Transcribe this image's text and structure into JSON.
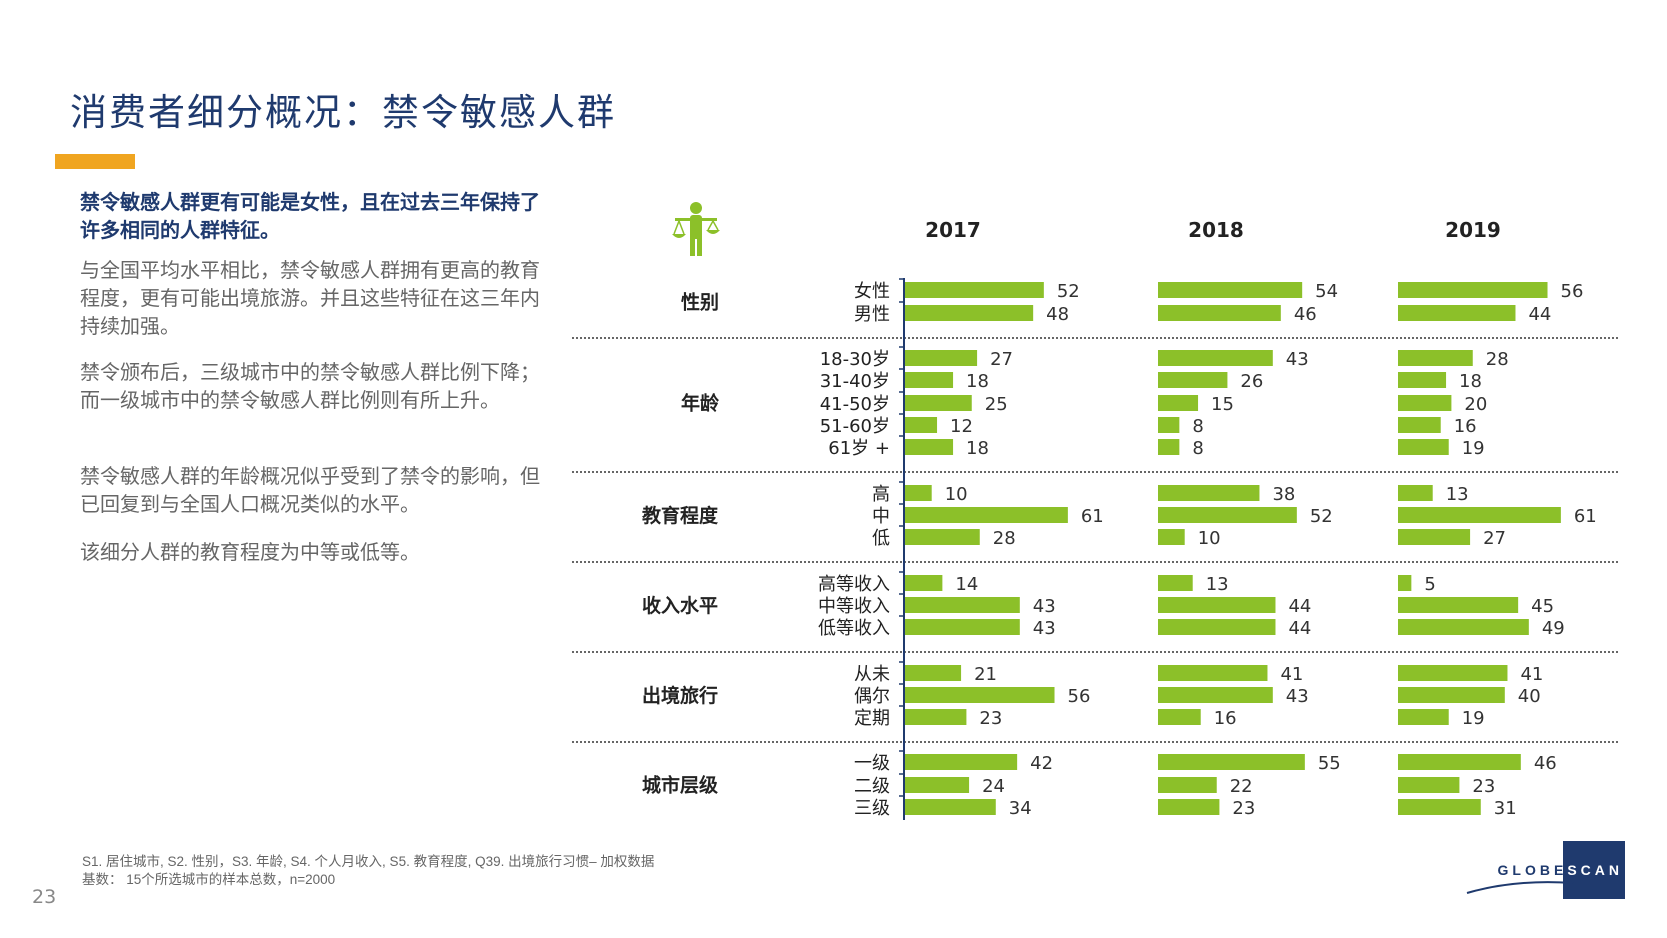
{
  "slide": {
    "title": "消费者细分概况：禁令敏感人群",
    "page_number": "23",
    "accent_color": "#f0a520",
    "bar_color": "#8cc029",
    "navy": "#1f3a6e"
  },
  "text": {
    "lead": "禁令敏感人群更有可能是女性，且在过去三年保持了许多相同的人群特征。",
    "paragraphs": [
      "与全国平均水平相比，禁令敏感人群拥有更高的教育程度，更有可能出境旅游。并且这些特征在这三年内持续加强。",
      "禁令颁布后，三级城市中的禁令敏感人群比例下降；而一级城市中的禁令敏感人群比例则有所上升。",
      "禁令敏感人群的年龄概况似乎受到了禁令的影响，但已回复到与全国人口概况类似的水平。",
      "该细分人群的教育程度为中等或低等。"
    ],
    "footnote_sources": "S1. 居住城市, S2. 性别，S3. 年龄, S4. 个人月收入, S5. 教育程度, Q39. 出境旅行习惯– 加权数据",
    "footnote_base": "基数： 15个所选城市的样本总数，n=2000"
  },
  "logo": {
    "part1": "GLOBE",
    "part2": "SCAN"
  },
  "icon": "scale-person-icon",
  "chart_data": {
    "type": "bar",
    "orientation": "horizontal",
    "unit": "%",
    "years": [
      "2017",
      "2018",
      "2019"
    ],
    "groups": [
      {
        "name": "性别",
        "categories": [
          "女性",
          "男性"
        ],
        "values": {
          "2017": [
            52,
            48
          ],
          "2018": [
            54,
            46
          ],
          "2019": [
            56,
            44
          ]
        }
      },
      {
        "name": "年龄",
        "categories": [
          "18-30岁",
          "31-40岁",
          "41-50岁",
          "51-60岁",
          "61岁 +"
        ],
        "values": {
          "2017": [
            27,
            18,
            25,
            12,
            18
          ],
          "2018": [
            43,
            26,
            15,
            8,
            8
          ],
          "2019": [
            28,
            18,
            20,
            16,
            19
          ]
        }
      },
      {
        "name": "教育程度",
        "categories": [
          "高",
          "中",
          "低"
        ],
        "values": {
          "2017": [
            10,
            61,
            28
          ],
          "2018": [
            38,
            52,
            10
          ],
          "2019": [
            13,
            61,
            27
          ]
        }
      },
      {
        "name": "收入水平",
        "categories": [
          "高等收入",
          "中等收入",
          "低等收入"
        ],
        "values": {
          "2017": [
            14,
            43,
            43
          ],
          "2018": [
            13,
            44,
            44
          ],
          "2019": [
            5,
            45,
            49
          ]
        }
      },
      {
        "name": "出境旅行",
        "categories": [
          "从未",
          "偶尔",
          "定期"
        ],
        "values": {
          "2017": [
            21,
            56,
            23
          ],
          "2018": [
            41,
            43,
            16
          ],
          "2019": [
            41,
            40,
            19
          ]
        }
      },
      {
        "name": "城市层级",
        "categories": [
          "一级",
          "二级",
          "三级"
        ],
        "values": {
          "2017": [
            42,
            24,
            34
          ],
          "2018": [
            55,
            22,
            23
          ],
          "2019": [
            46,
            23,
            31
          ]
        }
      }
    ]
  }
}
